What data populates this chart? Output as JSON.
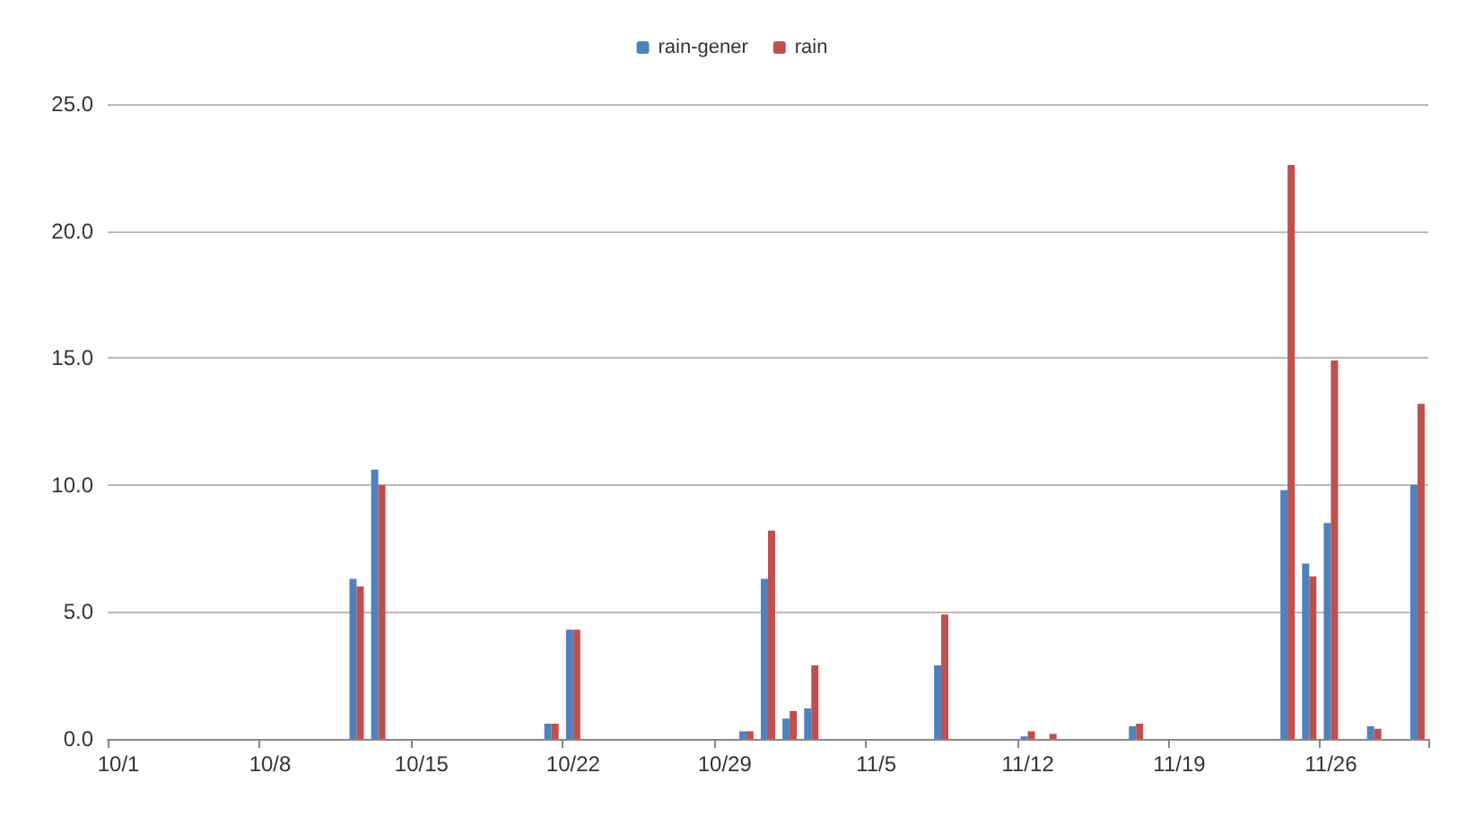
{
  "chart_data": {
    "type": "bar",
    "categories": [
      "10/1",
      null,
      null,
      null,
      null,
      null,
      null,
      "10/8",
      null,
      null,
      null,
      null,
      null,
      null,
      "10/15",
      null,
      null,
      null,
      null,
      null,
      null,
      "10/22",
      null,
      null,
      null,
      null,
      null,
      null,
      "10/29",
      null,
      null,
      null,
      null,
      null,
      null,
      "11/5",
      null,
      null,
      null,
      null,
      null,
      null,
      "11/12",
      null,
      null,
      null,
      null,
      null,
      null,
      "11/19",
      null,
      null,
      null,
      null,
      null,
      null,
      "11/26",
      null,
      null,
      null,
      null
    ],
    "series": [
      {
        "name": "rain-gener",
        "color": "#4f81bd",
        "values": [
          null,
          null,
          null,
          null,
          null,
          null,
          null,
          null,
          null,
          null,
          null,
          6.3,
          10.6,
          null,
          null,
          null,
          null,
          null,
          null,
          null,
          0.6,
          4.3,
          null,
          null,
          null,
          null,
          null,
          null,
          null,
          0.3,
          6.3,
          0.8,
          1.2,
          null,
          null,
          null,
          null,
          null,
          2.9,
          null,
          null,
          null,
          0.1,
          null,
          null,
          null,
          null,
          0.5,
          null,
          null,
          null,
          null,
          null,
          null,
          9.8,
          6.9,
          8.5,
          null,
          0.5,
          null,
          10.0
        ]
      },
      {
        "name": "rain",
        "color": "#c0504d",
        "values": [
          null,
          null,
          null,
          null,
          null,
          null,
          null,
          null,
          null,
          null,
          null,
          6.0,
          10.0,
          null,
          null,
          null,
          null,
          null,
          null,
          null,
          0.6,
          4.3,
          null,
          null,
          null,
          null,
          null,
          null,
          null,
          0.3,
          8.2,
          1.1,
          2.9,
          null,
          null,
          null,
          null,
          null,
          4.9,
          null,
          null,
          null,
          0.3,
          0.2,
          null,
          null,
          null,
          0.6,
          null,
          null,
          null,
          null,
          null,
          null,
          22.6,
          6.4,
          14.9,
          null,
          0.4,
          null,
          13.2
        ]
      }
    ],
    "ylim": [
      0,
      25
    ],
    "yticks": [
      {
        "value": 0,
        "label": "0.0"
      },
      {
        "value": 5,
        "label": "5.0"
      },
      {
        "value": 10,
        "label": "10.0"
      },
      {
        "value": 15,
        "label": "15.0"
      },
      {
        "value": 20,
        "label": "20.0"
      },
      {
        "value": 25,
        "label": "25.0"
      }
    ],
    "grid": "y",
    "legend": "top"
  }
}
